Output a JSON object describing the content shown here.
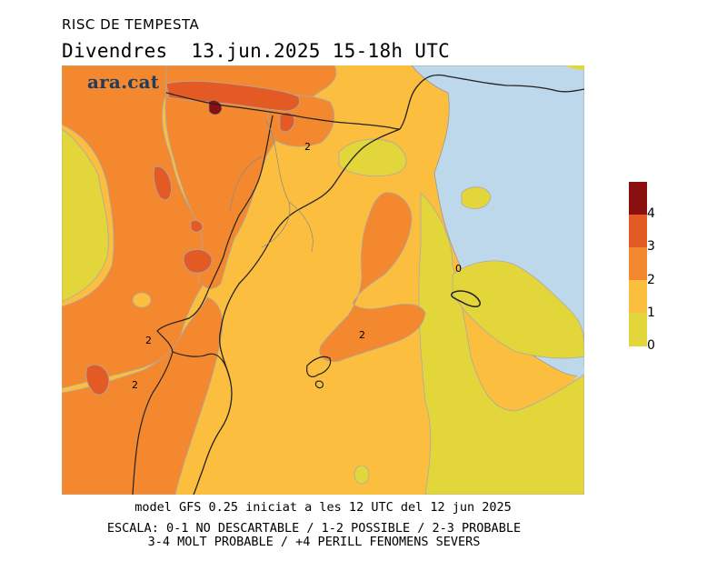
{
  "header": {
    "title": "RISC DE TEMPESTA",
    "subtitle": "Divendres  13.jun.2025 15-18h UTC"
  },
  "brand": {
    "name": "ara",
    "dot": ".",
    "suffix": "cat"
  },
  "legend": {
    "levels": [
      {
        "label": "0",
        "color": "#e2d63a"
      },
      {
        "label": "1",
        "color": "#fbbe3e"
      },
      {
        "label": "2",
        "color": "#f3882e"
      },
      {
        "label": "3",
        "color": "#e45a25"
      },
      {
        "label": "4",
        "color": "#8a1010"
      }
    ]
  },
  "map": {
    "sea_color": "#bcd8ea",
    "contour_labels": [
      "2",
      "0",
      "2",
      "2",
      "2"
    ]
  },
  "footer": {
    "model_line": "model GFS 0.25 iniciat a les 12 UTC del 12 jun 2025",
    "scale_line1": "ESCALA: 0-1 NO DESCARTABLE / 1-2 POSSIBLE / 2-3 PROBABLE",
    "scale_line2": "3-4 MOLT PROBABLE / +4 PERILL FENOMENS SEVERS"
  }
}
